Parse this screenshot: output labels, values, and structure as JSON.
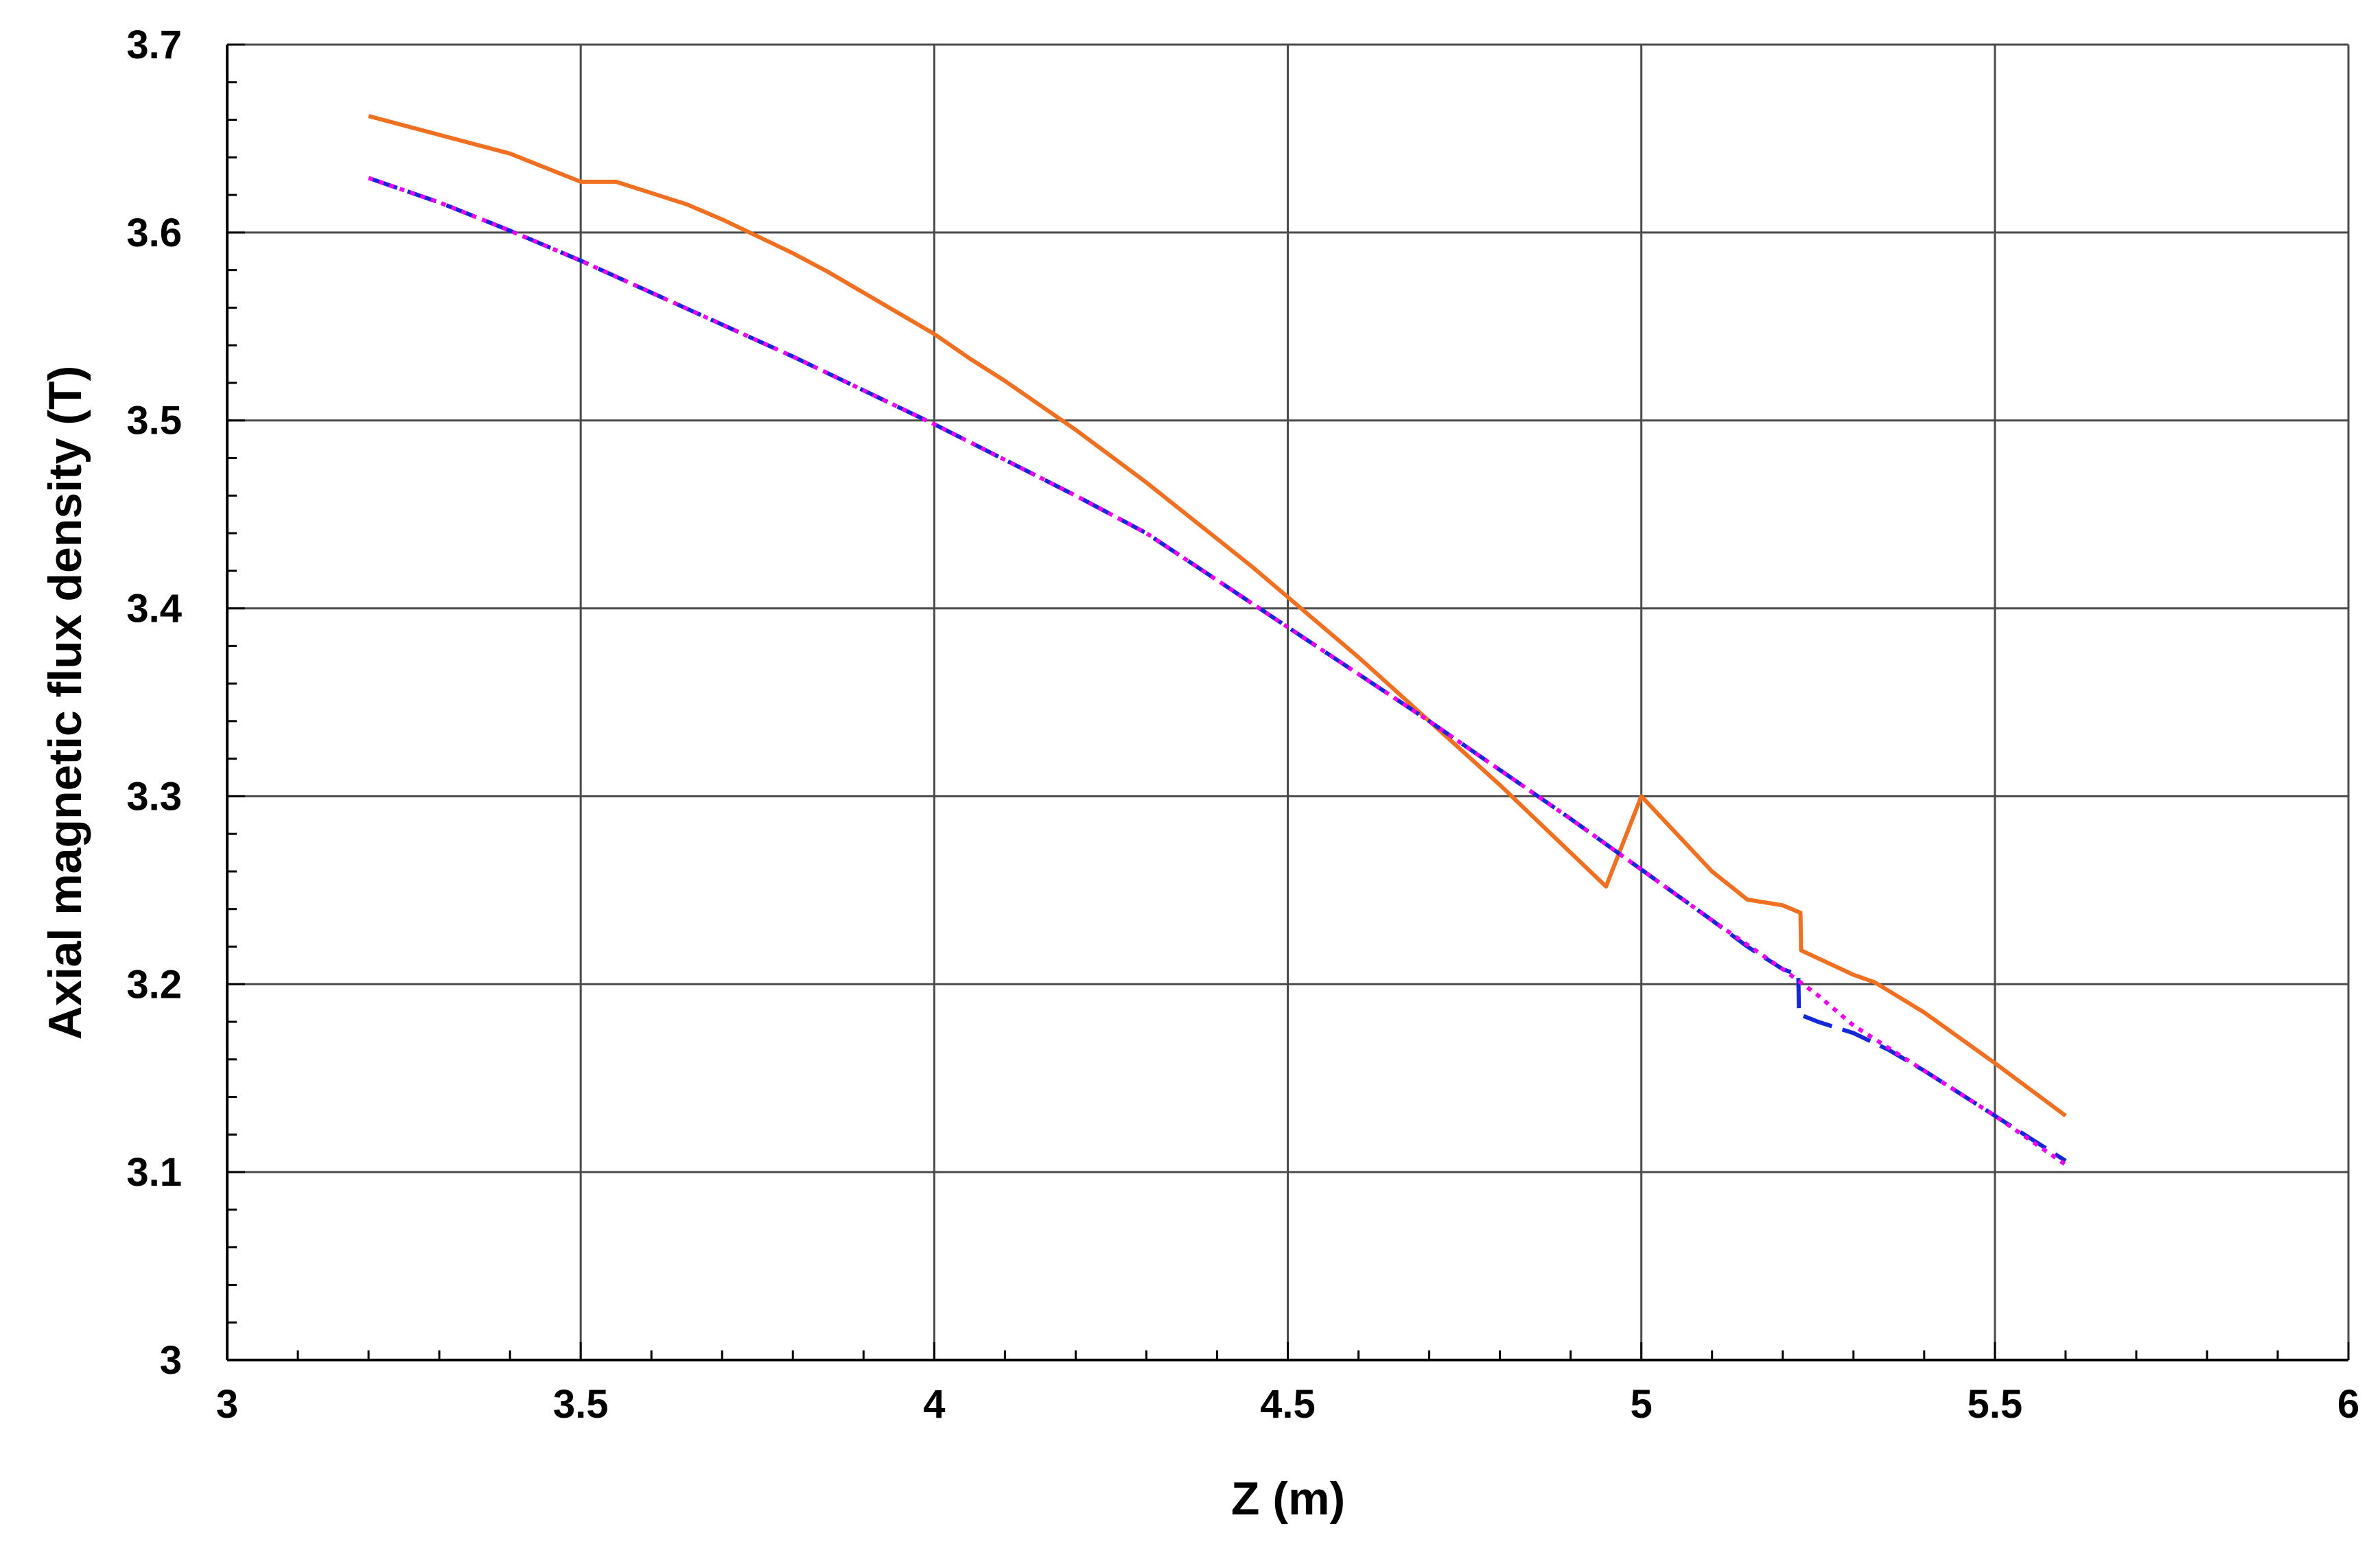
{
  "chart_data": {
    "type": "line",
    "title": "",
    "xlabel": "Z (m)",
    "ylabel": "Axial magnetic flux density (T)",
    "xlim": [
      3,
      6
    ],
    "ylim": [
      3,
      3.7
    ],
    "xticks": [
      3,
      3.5,
      4,
      4.5,
      5,
      5.5,
      6
    ],
    "xtick_labels": [
      "3",
      "3.5",
      "4",
      "4.5",
      "5",
      "5.5",
      "6"
    ],
    "yticks": [
      3,
      3.1,
      3.2,
      3.3,
      3.4,
      3.5,
      3.6,
      3.7
    ],
    "ytick_labels": [
      "3",
      "3.1",
      "3.2",
      "3.3",
      "3.4",
      "3.5",
      "3.6",
      "3.7"
    ],
    "x_minor_step": 0.1,
    "y_minor_step": 0.02,
    "grid": true,
    "legend": "none",
    "series": [
      {
        "color": "#f07022",
        "style": "solid",
        "x": [
          3.2,
          3.3,
          3.4,
          3.5,
          3.52,
          3.55,
          3.6,
          3.65,
          3.7,
          3.75,
          3.8,
          3.85,
          3.9,
          3.95,
          4.0,
          4.05,
          4.1,
          4.15,
          4.2,
          4.25,
          4.3,
          4.35,
          4.4,
          4.45,
          4.5,
          4.55,
          4.6,
          4.65,
          4.7,
          4.75,
          4.8,
          4.85,
          4.9,
          4.95,
          5.0,
          5.05,
          5.1,
          5.15,
          5.2,
          5.225,
          5.226,
          5.3,
          5.33,
          5.4,
          5.5,
          5.6
        ],
        "y": [
          3.662,
          3.652,
          3.642,
          3.627,
          3.627,
          3.627,
          3.621,
          3.615,
          3.607,
          3.598,
          3.589,
          3.579,
          3.568,
          3.557,
          3.546,
          3.533,
          3.521,
          3.508,
          3.495,
          3.481,
          3.467,
          3.452,
          3.437,
          3.422,
          3.406,
          3.39,
          3.374,
          3.357,
          3.34,
          3.323,
          3.306,
          3.288,
          3.27,
          3.252,
          3.3,
          3.28,
          3.26,
          3.245,
          3.242,
          3.238,
          3.218,
          3.205,
          3.201,
          3.185,
          3.158,
          3.13
        ]
      },
      {
        "color": "#1428d8",
        "style": "dashed",
        "x": [
          3.2,
          3.3,
          3.4,
          3.5,
          3.6,
          3.7,
          3.8,
          3.9,
          4.0,
          4.1,
          4.2,
          4.3,
          4.4,
          4.5,
          4.6,
          4.7,
          4.8,
          4.9,
          5.0,
          5.1,
          5.15,
          5.2,
          5.222,
          5.223,
          5.25,
          5.3,
          5.35,
          5.4,
          5.5,
          5.6
        ],
        "y": [
          3.629,
          3.616,
          3.601,
          3.585,
          3.568,
          3.551,
          3.534,
          3.516,
          3.498,
          3.479,
          3.46,
          3.44,
          3.415,
          3.39,
          3.365,
          3.34,
          3.314,
          3.288,
          3.261,
          3.234,
          3.22,
          3.208,
          3.205,
          3.184,
          3.18,
          3.174,
          3.165,
          3.154,
          3.13,
          3.106
        ]
      },
      {
        "color": "#ee00ee",
        "style": "dotted",
        "x": [
          3.2,
          3.3,
          3.4,
          3.5,
          3.6,
          3.7,
          3.8,
          3.9,
          4.0,
          4.1,
          4.2,
          4.3,
          4.4,
          4.5,
          4.6,
          4.7,
          4.8,
          4.9,
          5.0,
          5.1,
          5.2,
          5.25,
          5.3,
          5.4,
          5.5,
          5.6
        ],
        "y": [
          3.629,
          3.616,
          3.601,
          3.585,
          3.568,
          3.551,
          3.534,
          3.516,
          3.498,
          3.479,
          3.46,
          3.44,
          3.415,
          3.39,
          3.365,
          3.34,
          3.314,
          3.288,
          3.261,
          3.234,
          3.208,
          3.194,
          3.178,
          3.154,
          3.13,
          3.104
        ]
      }
    ]
  }
}
